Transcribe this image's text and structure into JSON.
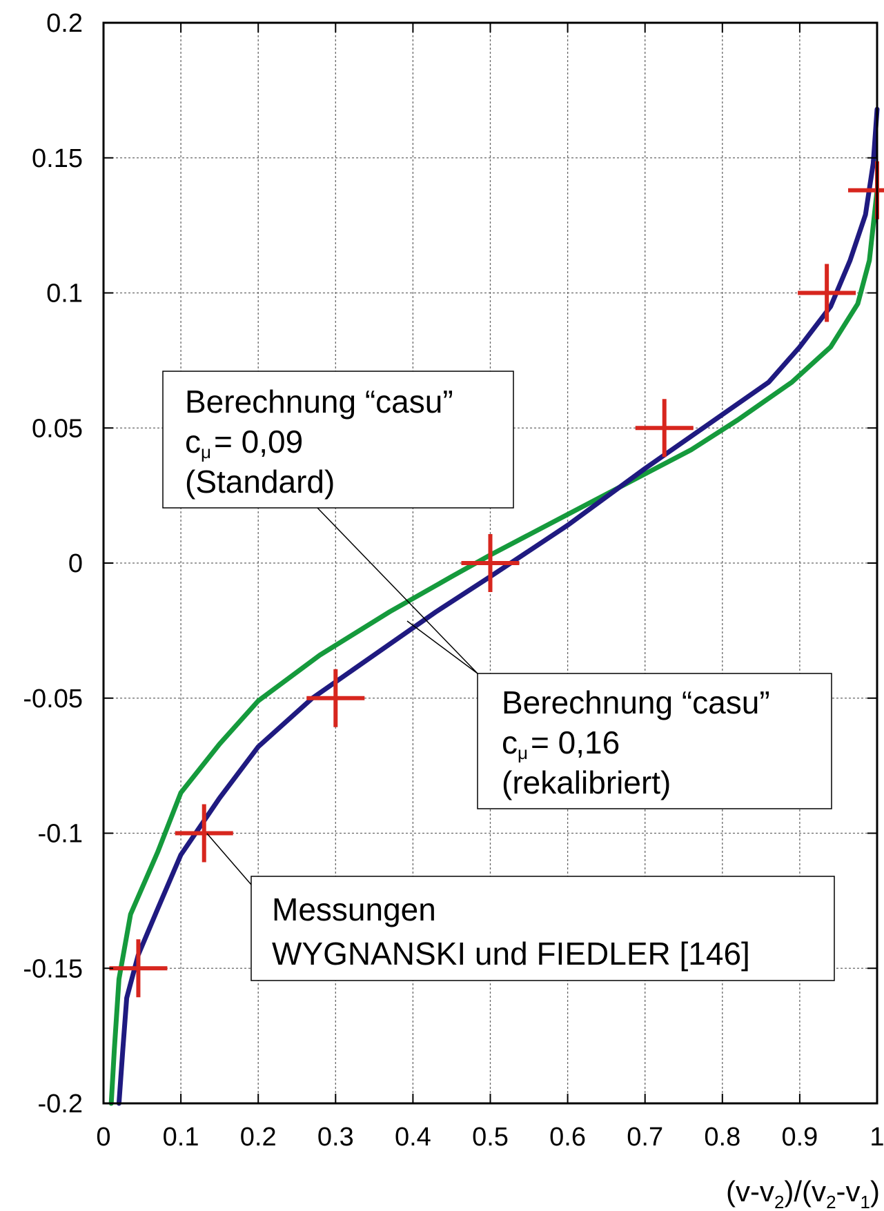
{
  "chart_data": {
    "type": "line",
    "xlabel": "(v-v2)/(v2-v1)",
    "xlabel_parts": [
      "(v-v",
      "2",
      ")/(v",
      "2",
      "-v",
      "1",
      ")"
    ],
    "xlim": [
      0,
      1
    ],
    "ylim": [
      -0.2,
      0.2
    ],
    "grid": true,
    "x_ticks": [
      {
        "value": 0,
        "label": "0"
      },
      {
        "value": 0.1,
        "label": "0.1"
      },
      {
        "value": 0.2,
        "label": "0.2"
      },
      {
        "value": 0.3,
        "label": "0.3"
      },
      {
        "value": 0.4,
        "label": "0.4"
      },
      {
        "value": 0.5,
        "label": "0.5"
      },
      {
        "value": 0.6,
        "label": "0.6"
      },
      {
        "value": 0.7,
        "label": "0.7"
      },
      {
        "value": 0.8,
        "label": "0.8"
      },
      {
        "value": 0.9,
        "label": "0.9"
      },
      {
        "value": 1,
        "label": "1"
      }
    ],
    "y_ticks": [
      {
        "value": 0.2,
        "label": "0.2"
      },
      {
        "value": 0.15,
        "label": "0.15"
      },
      {
        "value": 0.1,
        "label": "0.1"
      },
      {
        "value": 0.05,
        "label": "0.05"
      },
      {
        "value": 0,
        "label": "0"
      },
      {
        "value": -0.05,
        "label": "-0.05"
      },
      {
        "value": -0.1,
        "label": "-0.1"
      },
      {
        "value": -0.15,
        "label": "-0.15"
      },
      {
        "value": -0.2,
        "label": "-0.2"
      }
    ],
    "series": [
      {
        "kind": "line",
        "color": "#159a3c",
        "x": [
          0.01,
          0.014,
          0.02,
          0.035,
          0.07,
          0.1,
          0.15,
          0.2,
          0.28,
          0.37,
          0.45,
          0.5,
          0.6,
          0.7,
          0.76,
          0.82,
          0.89,
          0.94,
          0.975,
          0.99,
          1.0
        ],
        "y": [
          -0.2,
          -0.18,
          -0.154,
          -0.13,
          -0.107,
          -0.085,
          -0.067,
          -0.051,
          -0.034,
          -0.018,
          -0.005,
          0.003,
          0.018,
          0.033,
          0.042,
          0.053,
          0.067,
          0.08,
          0.096,
          0.112,
          0.138
        ]
      },
      {
        "kind": "line",
        "color": "#1f1a80",
        "x": [
          0.02,
          0.025,
          0.03,
          0.045,
          0.07,
          0.1,
          0.15,
          0.2,
          0.27,
          0.35,
          0.43,
          0.5,
          0.6,
          0.7,
          0.8,
          0.86,
          0.9,
          0.94,
          0.965,
          0.985,
          0.995,
          1.0
        ],
        "y": [
          -0.2,
          -0.18,
          -0.161,
          -0.145,
          -0.128,
          -0.108,
          -0.087,
          -0.068,
          -0.05,
          -0.034,
          -0.018,
          -0.005,
          0.014,
          0.035,
          0.055,
          0.067,
          0.08,
          0.095,
          0.112,
          0.129,
          0.148,
          0.168
        ]
      },
      {
        "kind": "markers",
        "marker": "plus",
        "color": "#d7261e",
        "x": [
          0.045,
          0.13,
          0.3,
          0.5,
          0.725,
          0.935,
          1.0
        ],
        "y": [
          -0.15,
          -0.1,
          -0.05,
          0.0,
          0.05,
          0.1,
          0.138
        ]
      }
    ],
    "annotations": [
      {
        "lines": [
          "Berechnung “casu”",
          "cμ = 0,09",
          "(Standard)"
        ]
      },
      {
        "lines": [
          "Berechnung “casu”",
          "cμ = 0,16",
          "(rekalibriert)"
        ]
      },
      {
        "lines": [
          "Messungen",
          "WYGNANSKI und FIEDLER [146]"
        ]
      }
    ],
    "annotation_parts": {
      "c": "c",
      "mu": "μ",
      "val1": "= 0,09",
      "val2": "= 0,16"
    }
  }
}
